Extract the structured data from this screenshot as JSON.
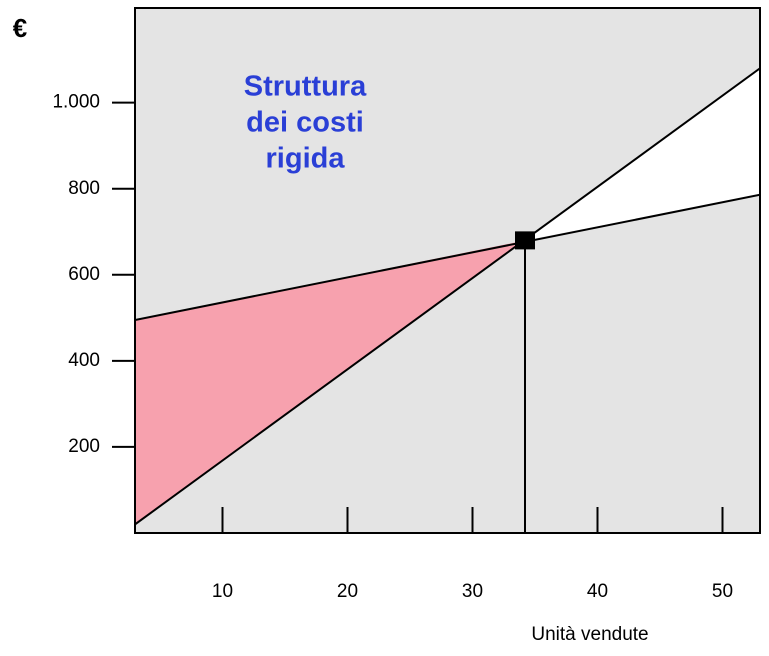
{
  "chart_data": {
    "type": "line",
    "y_label": "€",
    "x_label": "Unità vendute",
    "annotation": [
      "Struttura",
      "dei costi",
      "rigida"
    ],
    "x": [
      3,
      53
    ],
    "series": [
      {
        "color": "#000000",
        "values": [
          20,
          1080
        ]
      },
      {
        "color": "#000000",
        "values": [
          495,
          786
        ]
      }
    ],
    "break_even": {
      "x": 34.2,
      "y": 680
    },
    "loss_color": "#f7a1ae",
    "profit_color": "#ffffff",
    "background": "#e4e4e4",
    "xlim": [
      3,
      53
    ],
    "ylim": [
      0,
      1220
    ],
    "xticks": [
      10,
      20,
      30,
      40,
      50
    ],
    "yticks": [
      200,
      400,
      600,
      800,
      {
        "value": 1000,
        "label": "1.000"
      }
    ]
  }
}
